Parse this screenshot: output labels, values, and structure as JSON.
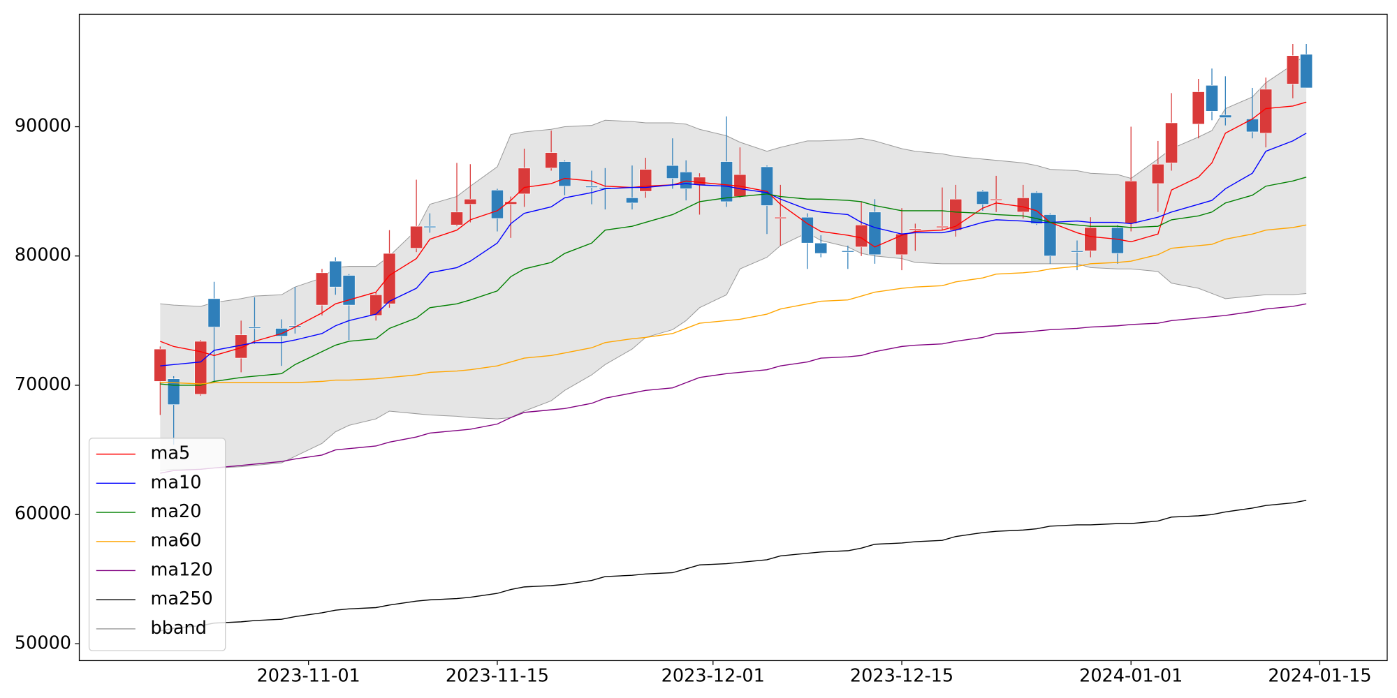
{
  "chart_data": {
    "type": "candlestick",
    "x": [
      "2023-10-21",
      "2023-10-22",
      "2023-10-24",
      "2023-10-25",
      "2023-10-27",
      "2023-10-28",
      "2023-10-30",
      "2023-10-31",
      "2023-11-02",
      "2023-11-03",
      "2023-11-04",
      "2023-11-06",
      "2023-11-07",
      "2023-11-09",
      "2023-11-10",
      "2023-11-12",
      "2023-11-13",
      "2023-11-15",
      "2023-11-16",
      "2023-11-17",
      "2023-11-19",
      "2023-11-20",
      "2023-11-22",
      "2023-11-23",
      "2023-11-25",
      "2023-11-26",
      "2023-11-28",
      "2023-11-29",
      "2023-11-30",
      "2023-12-02",
      "2023-12-03",
      "2023-12-05",
      "2023-12-06",
      "2023-12-08",
      "2023-12-09",
      "2023-12-11",
      "2023-12-12",
      "2023-12-13",
      "2023-12-15",
      "2023-12-16",
      "2023-12-18",
      "2023-12-19",
      "2023-12-21",
      "2023-12-22",
      "2023-12-24",
      "2023-12-25",
      "2023-12-26",
      "2023-12-28",
      "2023-12-29",
      "2023-12-31",
      "2024-01-01",
      "2024-01-03",
      "2024-01-04",
      "2024-01-06",
      "2024-01-07",
      "2024-01-08",
      "2024-01-10",
      "2024-01-11",
      "2024-01-13",
      "2024-01-14"
    ],
    "open": [
      70300,
      70500,
      69300,
      76700,
      72100,
      74500,
      74400,
      74600,
      76200,
      79600,
      78500,
      75400,
      76300,
      80600,
      82300,
      82400,
      84000,
      85100,
      84000,
      84800,
      86800,
      87300,
      85400,
      85300,
      84500,
      85000,
      87000,
      86500,
      85500,
      87300,
      84600,
      86900,
      82900,
      83000,
      81000,
      80400,
      80700,
      83400,
      80100,
      82000,
      82200,
      82000,
      85000,
      84300,
      83400,
      84900,
      83200,
      80400,
      80400,
      82200,
      82500,
      85600,
      87200,
      90200,
      93200,
      90900,
      90600,
      89500,
      93300,
      95600
    ],
    "high": [
      73000,
      70700,
      73500,
      78000,
      75000,
      76800,
      75100,
      77600,
      79000,
      79900,
      78600,
      77200,
      82000,
      85900,
      83300,
      87200,
      87100,
      85200,
      84600,
      88300,
      89700,
      87400,
      86600,
      86800,
      87000,
      87600,
      89100,
      87400,
      86400,
      90800,
      88400,
      87000,
      85500,
      83300,
      81600,
      80800,
      84200,
      84400,
      83700,
      82500,
      85300,
      85500,
      85100,
      86200,
      85500,
      85000,
      83300,
      81200,
      83000,
      82400,
      90000,
      88900,
      92600,
      93700,
      94500,
      93900,
      93000,
      93800,
      96400,
      96400
    ],
    "low": [
      67700,
      65400,
      69200,
      70200,
      71000,
      73200,
      71500,
      74000,
      75400,
      77000,
      73500,
      75000,
      76000,
      80300,
      81800,
      82300,
      82600,
      81900,
      81400,
      83800,
      86600,
      84700,
      84000,
      83600,
      83600,
      84500,
      85200,
      84300,
      83200,
      83800,
      84500,
      81700,
      80800,
      79000,
      79900,
      79000,
      80000,
      79400,
      78900,
      80400,
      82000,
      81500,
      83500,
      83400,
      82900,
      82400,
      79400,
      78900,
      79900,
      79400,
      81900,
      83400,
      86600,
      89100,
      90500,
      90100,
      89100,
      88400,
      92200,
      93000
    ],
    "close": [
      72800,
      68500,
      73400,
      74500,
      73900,
      74400,
      73800,
      74500,
      78700,
      77600,
      76200,
      77000,
      80200,
      82300,
      82200,
      83400,
      84400,
      82900,
      84200,
      86800,
      88000,
      85400,
      85300,
      85200,
      84100,
      86700,
      86000,
      85200,
      86100,
      84200,
      86300,
      83900,
      83000,
      81000,
      80200,
      80300,
      82400,
      80100,
      81700,
      82100,
      82300,
      84400,
      84000,
      84400,
      84500,
      82500,
      80000,
      80300,
      82200,
      80200,
      85800,
      87100,
      90300,
      92700,
      91200,
      90700,
      89600,
      92900,
      95500,
      93000
    ],
    "up_color": "#d93a3a",
    "down_color": "#2f7fba",
    "series": [
      {
        "name": "ma5",
        "color": "#ff0000",
        "values": [
          73400,
          73000,
          72600,
          72300,
          72900,
          73400,
          74000,
          74500,
          75600,
          76300,
          76600,
          77200,
          78500,
          79800,
          81300,
          82000,
          82800,
          83500,
          84300,
          85300,
          85600,
          86000,
          85800,
          85400,
          85300,
          85400,
          85500,
          85800,
          85700,
          85500,
          85400,
          85000,
          84000,
          82500,
          81900,
          81600,
          81400,
          80700,
          81600,
          81900,
          82000,
          82300,
          83700,
          84100,
          83800,
          83500,
          82600,
          81800,
          81500,
          81300,
          81100,
          81700,
          85100,
          86100,
          87200,
          89500,
          90600,
          91400,
          91600,
          91900
        ]
      },
      {
        "name": "ma10",
        "color": "#0000ff",
        "values": [
          71500,
          71600,
          71800,
          72700,
          73100,
          73300,
          73300,
          73500,
          74000,
          74600,
          75000,
          75500,
          76500,
          77500,
          78700,
          79100,
          79600,
          81000,
          82500,
          83300,
          83800,
          84500,
          84900,
          85200,
          85300,
          85300,
          85500,
          85600,
          85500,
          85400,
          85200,
          84900,
          84400,
          83600,
          83400,
          83200,
          82600,
          82200,
          81700,
          81800,
          81800,
          82000,
          82600,
          82800,
          82700,
          82600,
          82600,
          82700,
          82600,
          82600,
          82500,
          83000,
          83400,
          84000,
          84300,
          85200,
          86400,
          88100,
          88900,
          89500
        ]
      },
      {
        "name": "ma20",
        "color": "#008000",
        "values": [
          70100,
          70000,
          70000,
          70300,
          70600,
          70700,
          70900,
          71600,
          72600,
          73100,
          73400,
          73600,
          74400,
          75200,
          76000,
          76300,
          76600,
          77300,
          78400,
          79000,
          79500,
          80200,
          81000,
          82000,
          82300,
          82600,
          83200,
          83700,
          84200,
          84500,
          84600,
          84800,
          84600,
          84400,
          84400,
          84300,
          84200,
          83900,
          83500,
          83500,
          83500,
          83400,
          83300,
          83200,
          83100,
          82900,
          82600,
          82400,
          82300,
          82300,
          82200,
          82300,
          82800,
          83100,
          83400,
          84100,
          84700,
          85400,
          85800,
          86100
        ]
      },
      {
        "name": "ma60",
        "color": "#ffa500",
        "values": [
          70200,
          70200,
          70100,
          70200,
          70200,
          70200,
          70200,
          70200,
          70300,
          70400,
          70400,
          70500,
          70600,
          70800,
          71000,
          71100,
          71200,
          71500,
          71800,
          72100,
          72300,
          72500,
          72900,
          73300,
          73600,
          73700,
          74000,
          74400,
          74800,
          75000,
          75100,
          75500,
          75900,
          76300,
          76500,
          76600,
          76900,
          77200,
          77500,
          77600,
          77700,
          78000,
          78300,
          78600,
          78700,
          78800,
          79000,
          79200,
          79400,
          79500,
          79600,
          80100,
          80600,
          80800,
          80900,
          81300,
          81700,
          82000,
          82200,
          82400
        ]
      },
      {
        "name": "ma120",
        "color": "#800080",
        "values": [
          63200,
          63400,
          63500,
          63600,
          63800,
          63900,
          64100,
          64300,
          64600,
          65000,
          65100,
          65300,
          65600,
          66000,
          66300,
          66500,
          66600,
          67000,
          67500,
          67900,
          68100,
          68200,
          68600,
          69000,
          69400,
          69600,
          69800,
          70200,
          70600,
          70900,
          71000,
          71200,
          71500,
          71800,
          72100,
          72200,
          72300,
          72600,
          73000,
          73100,
          73200,
          73400,
          73700,
          74000,
          74100,
          74200,
          74300,
          74400,
          74500,
          74600,
          74700,
          74800,
          75000,
          75200,
          75300,
          75400,
          75700,
          75900,
          76100,
          76300
        ]
      },
      {
        "name": "ma250",
        "color": "#000000",
        "values": [
          51000,
          51200,
          51400,
          51600,
          51700,
          51800,
          51900,
          52100,
          52400,
          52600,
          52700,
          52800,
          53000,
          53300,
          53400,
          53500,
          53600,
          53900,
          54200,
          54400,
          54500,
          54600,
          54900,
          55200,
          55300,
          55400,
          55500,
          55800,
          56100,
          56200,
          56300,
          56500,
          56800,
          57000,
          57100,
          57200,
          57400,
          57700,
          57800,
          57900,
          58000,
          58300,
          58600,
          58700,
          58800,
          58900,
          59100,
          59200,
          59200,
          59300,
          59300,
          59500,
          59800,
          59900,
          60000,
          60200,
          60500,
          60700,
          60900,
          61100
        ]
      }
    ],
    "bband": {
      "name": "bband",
      "color": "#999999",
      "fill_color": "#e5e5e5",
      "upper": [
        76300,
        76200,
        76100,
        76400,
        76700,
        76900,
        77000,
        77600,
        78300,
        79100,
        79200,
        79200,
        80000,
        82000,
        84000,
        84600,
        85400,
        86900,
        89400,
        89600,
        89800,
        90000,
        90100,
        90500,
        90400,
        90300,
        90300,
        90200,
        89800,
        89300,
        88800,
        88100,
        88400,
        88900,
        88900,
        89000,
        89100,
        88900,
        88300,
        88100,
        87900,
        87700,
        87500,
        87400,
        87200,
        87000,
        86700,
        86600,
        86400,
        86300,
        86000,
        87500,
        88300,
        89200,
        89700,
        91400,
        92300,
        93400,
        94800,
        95600
      ],
      "lower": [
        63400,
        63500,
        63500,
        63600,
        63700,
        63800,
        64000,
        64500,
        65500,
        66400,
        66900,
        67400,
        68000,
        67800,
        67700,
        67600,
        67500,
        67400,
        67500,
        68000,
        68800,
        69600,
        70800,
        71600,
        72800,
        73700,
        74300,
        75000,
        76000,
        77000,
        79000,
        79900,
        80800,
        81800,
        81200,
        80700,
        80200,
        80000,
        79800,
        79500,
        79400,
        79400,
        79400,
        79400,
        79400,
        79400,
        79400,
        79400,
        79100,
        79000,
        79000,
        78800,
        77900,
        77500,
        77100,
        76700,
        76900,
        77000,
        77000,
        77100
      ]
    },
    "xlim": [
      "2023-10-15",
      "2024-01-20"
    ],
    "xticks": [
      "2023-11-01",
      "2023-11-15",
      "2023-12-01",
      "2023-12-15",
      "2024-01-01",
      "2024-01-15"
    ],
    "ylim": [
      48700,
      98700
    ],
    "yticks": [
      50000,
      60000,
      70000,
      80000,
      90000
    ],
    "grid": false,
    "legend": "lower left"
  }
}
